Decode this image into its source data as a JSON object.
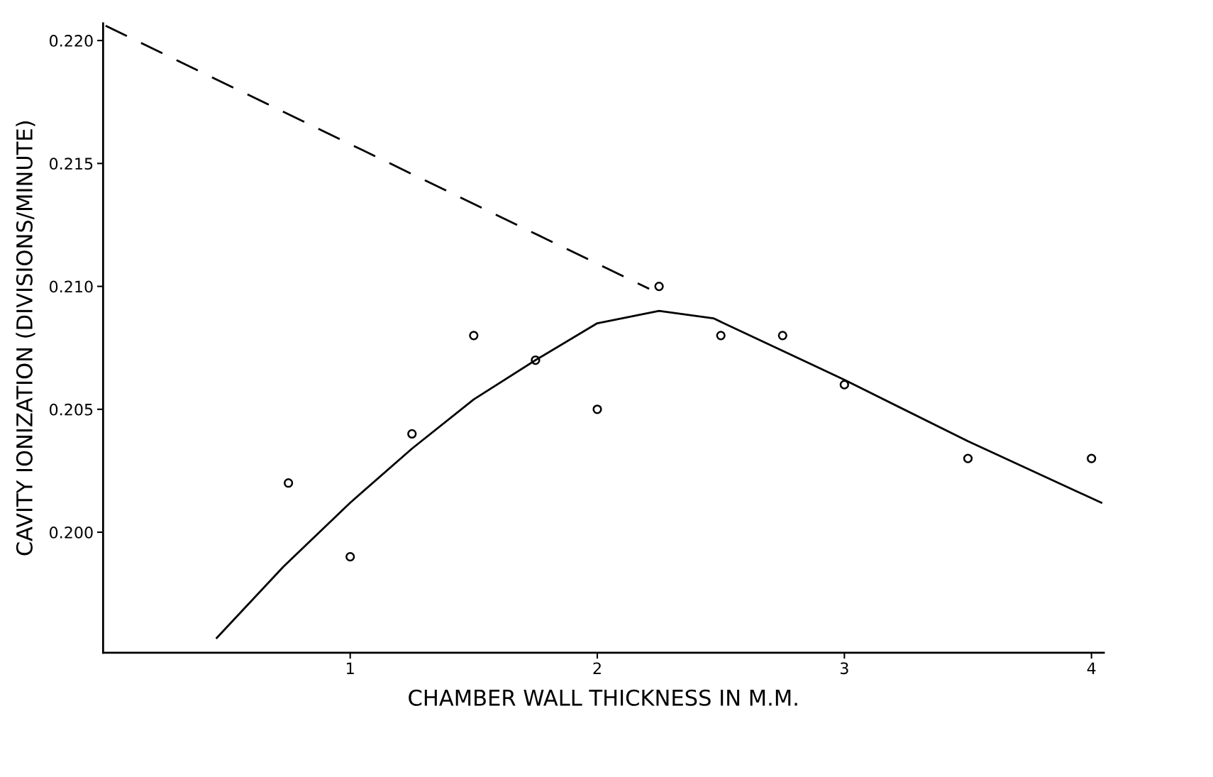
{
  "chart_data": {
    "type": "scatter",
    "xlabel": "CHAMBER WALL THICKNESS IN M.M.",
    "ylabel": "CAVITY IONIZATION (DIVISIONS/MINUTE)",
    "xlim": [
      0,
      4.05
    ],
    "ylim": [
      0.1951,
      0.2207
    ],
    "xticks": [
      1,
      2,
      3,
      4
    ],
    "yticks": [
      {
        "value": 0.2,
        "label": "0.200"
      },
      {
        "value": 0.205,
        "label": "0.205"
      },
      {
        "value": 0.21,
        "label": "0.210"
      },
      {
        "value": 0.215,
        "label": "0.215"
      },
      {
        "value": 0.22,
        "label": "0.220"
      }
    ],
    "grid": false,
    "legend": false,
    "series": [
      {
        "marker": "circle",
        "color": "#000000",
        "x": [
          0.75,
          1.0,
          1.25,
          1.5,
          1.75,
          2.0,
          2.25,
          2.5,
          2.75,
          3.0,
          3.5,
          4.0
        ],
        "values": [
          0.202,
          0.199,
          0.204,
          0.208,
          0.207,
          0.205,
          0.21,
          0.208,
          0.208,
          0.206,
          0.203,
          0.203
        ]
      },
      {
        "type": "line",
        "line_style": "solid",
        "color": "#000000",
        "x": [
          0.46,
          0.73,
          1.0,
          1.25,
          1.5,
          1.75,
          2.0,
          2.25,
          2.47,
          3.0,
          3.5,
          4.04
        ],
        "values": [
          0.1957,
          0.1986,
          0.2012,
          0.2034,
          0.2054,
          0.207,
          0.2085,
          0.209,
          0.2087,
          0.2062,
          0.2037,
          0.2012
        ]
      },
      {
        "type": "line",
        "line_style": "dashed",
        "color": "#000000",
        "x": [
          0.01,
          2.21
        ],
        "values": [
          0.2206,
          0.2099
        ]
      }
    ]
  }
}
